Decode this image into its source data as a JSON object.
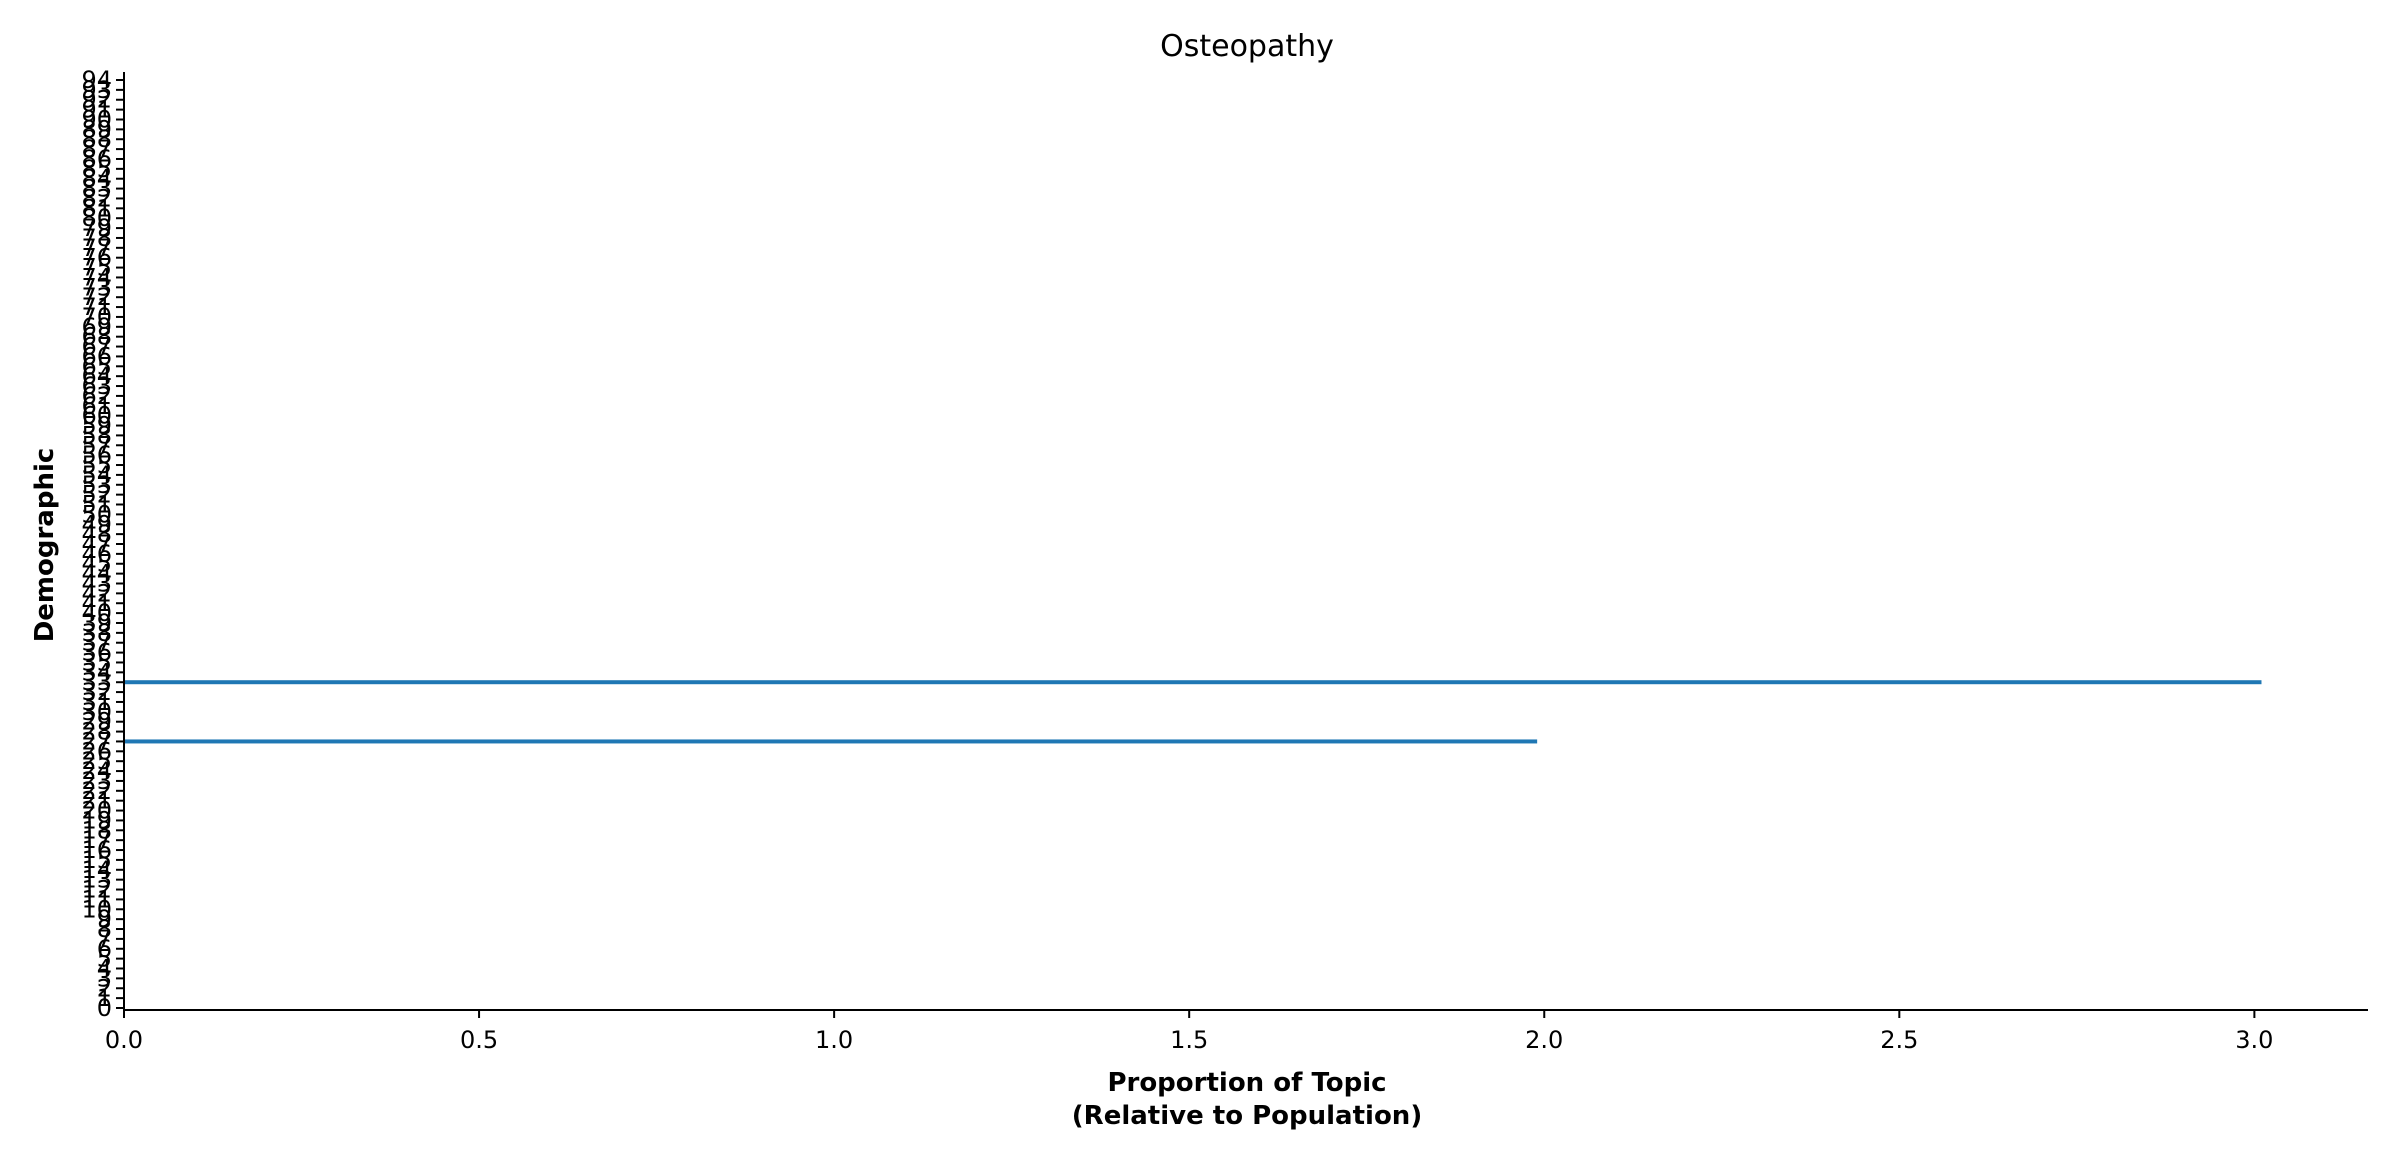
{
  "chart_data": {
    "type": "bar",
    "orientation": "horizontal",
    "title": "Osteopathy",
    "xlabel_lines": [
      "Proportion of Topic",
      "(Relative to Population)"
    ],
    "ylabel": "Demographic",
    "xlim": [
      0,
      3.16
    ],
    "ylim": [
      0,
      94
    ],
    "xticks": [
      0.0,
      0.5,
      1.0,
      1.5,
      2.0,
      2.5,
      3.0
    ],
    "xtick_labels": [
      "0.0",
      "0.5",
      "1.0",
      "1.5",
      "2.0",
      "2.5",
      "3.0"
    ],
    "ytick_labels": [
      "0",
      "1",
      "2",
      "3",
      "4",
      "5",
      "6",
      "7",
      "8",
      "9",
      "10",
      "11",
      "12",
      "13",
      "14",
      "15",
      "16",
      "17",
      "18",
      "19",
      "20",
      "21",
      "22",
      "23",
      "24",
      "25",
      "26",
      "27",
      "28",
      "29",
      "30",
      "31",
      "32",
      "33",
      "34",
      "35",
      "36",
      "37",
      "38",
      "39",
      "40",
      "41",
      "42",
      "43",
      "44",
      "45",
      "46",
      "47",
      "48",
      "49",
      "50",
      "51",
      "52",
      "53",
      "54",
      "55",
      "56",
      "57",
      "58",
      "59",
      "60",
      "61",
      "62",
      "63",
      "64",
      "65",
      "66",
      "67",
      "68",
      "69",
      "70",
      "71",
      "72",
      "73",
      "74",
      "75",
      "76",
      "77",
      "78",
      "79",
      "80",
      "81",
      "82",
      "83",
      "84",
      "85",
      "86",
      "87",
      "88",
      "89",
      "90",
      "91",
      "92",
      "93",
      "94"
    ],
    "bars": [
      {
        "category": "27",
        "value": 1.99
      },
      {
        "category": "33",
        "value": 3.01
      }
    ],
    "bar_color": "#1f77b4",
    "grid": false,
    "legend": "none"
  }
}
